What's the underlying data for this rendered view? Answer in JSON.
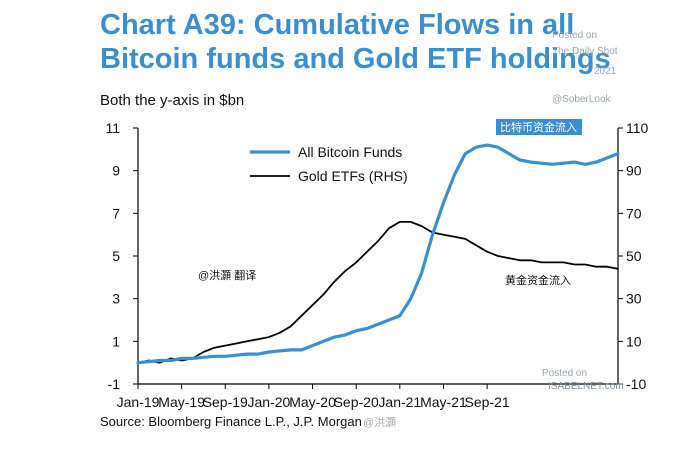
{
  "chart_data": {
    "type": "line",
    "title": "Chart A39: Cumulative Flows in all Bitcoin funds and Gold ETF holdings",
    "subtitle": "Both the y-axis in $bn",
    "x_ticks": [
      "Jan-19",
      "May-19",
      "Sep-19",
      "Jan-20",
      "May-20",
      "Sep-20",
      "Jan-21",
      "May-21",
      "Sep-21"
    ],
    "x": [
      0,
      1,
      2,
      3,
      4,
      5,
      6,
      7,
      8,
      9,
      10,
      11,
      12,
      13,
      14,
      15,
      16,
      17,
      18,
      19,
      20,
      21,
      22,
      23,
      24,
      25,
      26,
      27,
      28,
      29,
      30,
      31,
      32,
      33,
      34,
      35,
      36,
      37,
      38,
      39,
      40,
      41,
      42,
      43,
      44
    ],
    "x_unit": "months since Jan-19",
    "ylim_left": [
      -1,
      11
    ],
    "y_ticks_left": [
      -1,
      1,
      3,
      5,
      7,
      9,
      11
    ],
    "ylim_right": [
      -10,
      110
    ],
    "y_ticks_right": [
      -10,
      10,
      30,
      50,
      70,
      90,
      110
    ],
    "series": [
      {
        "name": "All Bitcoin Funds",
        "axis": "left",
        "color": "#3b8fd0",
        "values": [
          0.0,
          0.05,
          0.1,
          0.1,
          0.2,
          0.2,
          0.25,
          0.3,
          0.3,
          0.35,
          0.4,
          0.4,
          0.5,
          0.55,
          0.6,
          0.6,
          0.8,
          1.0,
          1.2,
          1.3,
          1.5,
          1.6,
          1.8,
          2.0,
          2.2,
          3.0,
          4.2,
          6.0,
          7.5,
          8.8,
          9.8,
          10.1,
          10.2,
          10.1,
          9.8,
          9.5,
          9.4,
          9.35,
          9.3,
          9.35,
          9.4,
          9.3,
          9.4,
          9.6,
          9.8
        ]
      },
      {
        "name": "Gold ETFs (RHS)",
        "axis": "right",
        "color": "#000000",
        "values": [
          0,
          1,
          0,
          2,
          1,
          2,
          5,
          7,
          8,
          9,
          10,
          11,
          12,
          14,
          17,
          22,
          27,
          32,
          38,
          43,
          47,
          52,
          57,
          63,
          66,
          66,
          64,
          61,
          60,
          59,
          58,
          55,
          52,
          50,
          49,
          48,
          48,
          47,
          47,
          47,
          46,
          46,
          45,
          45,
          44
        ]
      }
    ],
    "legend": [
      "All Bitcoin Funds",
      "Gold ETFs (RHS)"
    ],
    "legend_position": "top-left",
    "annotations": {
      "bitcoin_cn": "比特币资金流入",
      "gold_cn": "黄金资金流入",
      "translator": "@洪灝 翻译"
    }
  },
  "watermarks": {
    "top_right_1": "Posted on",
    "top_right_2": "The Daily Shot",
    "top_right_3": "2021",
    "top_right_4": "@SoberLook",
    "bottom_right_1": "Posted on",
    "bottom_right_2": "ISABELNET.com"
  },
  "source": "Source: Bloomberg Finance L.P., J.P. Morgan",
  "source_mark": "@洪灝"
}
